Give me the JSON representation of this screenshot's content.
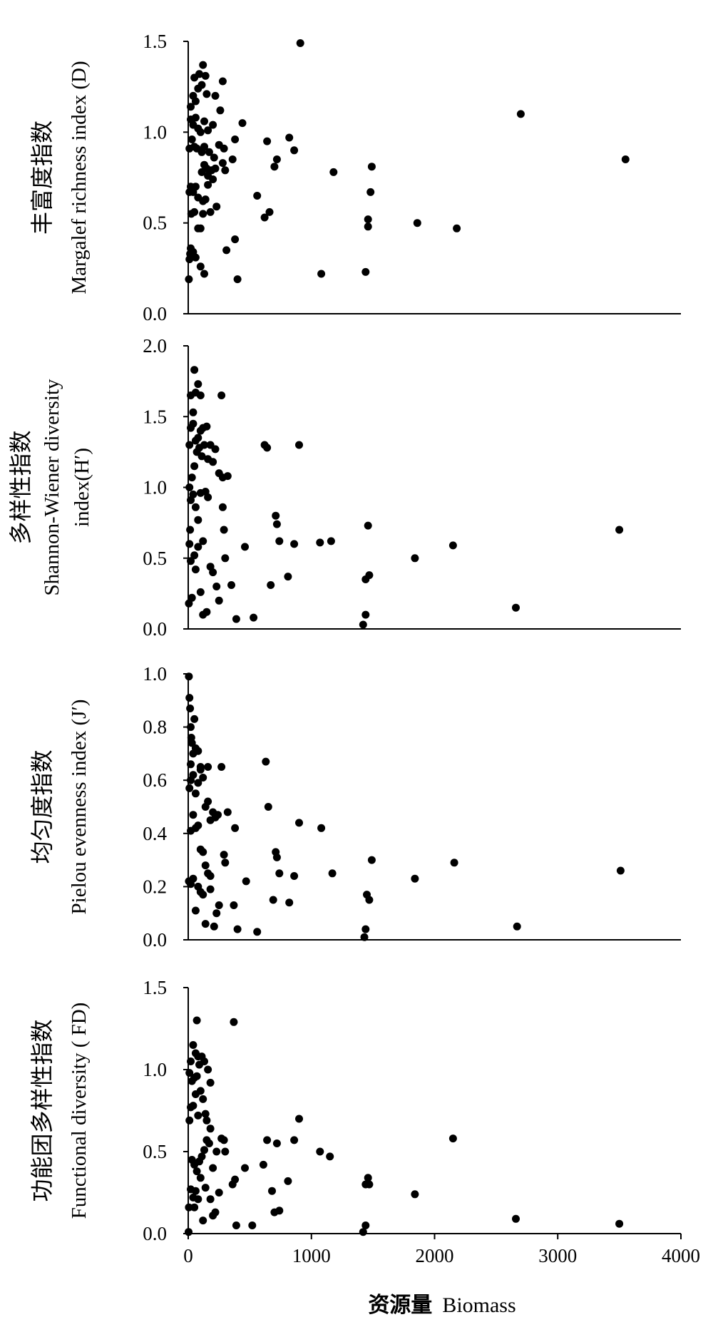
{
  "colors": {
    "point": "#000000",
    "axis": "#000000"
  },
  "chart_data": [
    {
      "type": "scatter",
      "ylabel_cn": "丰富度指数",
      "ylabel_lines": [
        "Margalef richness index (D)"
      ],
      "ylim": [
        0,
        1.5
      ],
      "yticks": [
        "0.0",
        "0.5",
        "1.0",
        "1.5"
      ],
      "xlim": [
        0,
        4000
      ],
      "points": [
        [
          5,
          0.19
        ],
        [
          10,
          0.3
        ],
        [
          15,
          0.33
        ],
        [
          20,
          0.36
        ],
        [
          40,
          0.34
        ],
        [
          60,
          0.31
        ],
        [
          100,
          0.26
        ],
        [
          130,
          0.22
        ],
        [
          25,
          0.55
        ],
        [
          50,
          0.56
        ],
        [
          80,
          0.47
        ],
        [
          100,
          0.47
        ],
        [
          120,
          0.55
        ],
        [
          140,
          0.63
        ],
        [
          180,
          0.56
        ],
        [
          230,
          0.59
        ],
        [
          10,
          0.67
        ],
        [
          20,
          0.7
        ],
        [
          40,
          0.67
        ],
        [
          60,
          0.7
        ],
        [
          80,
          0.64
        ],
        [
          120,
          0.62
        ],
        [
          160,
          0.71
        ],
        [
          200,
          0.74
        ],
        [
          110,
          0.78
        ],
        [
          130,
          0.82
        ],
        [
          150,
          0.8
        ],
        [
          160,
          0.76
        ],
        [
          190,
          0.79
        ],
        [
          220,
          0.8
        ],
        [
          280,
          0.83
        ],
        [
          300,
          0.79
        ],
        [
          10,
          0.91
        ],
        [
          30,
          0.96
        ],
        [
          50,
          0.92
        ],
        [
          70,
          0.91
        ],
        [
          110,
          0.89
        ],
        [
          130,
          0.92
        ],
        [
          170,
          0.89
        ],
        [
          210,
          0.86
        ],
        [
          250,
          0.93
        ],
        [
          290,
          0.91
        ],
        [
          360,
          0.85
        ],
        [
          380,
          0.96
        ],
        [
          20,
          1.07
        ],
        [
          40,
          1.04
        ],
        [
          60,
          1.08
        ],
        [
          80,
          1.02
        ],
        [
          100,
          1.0
        ],
        [
          130,
          1.06
        ],
        [
          160,
          1.01
        ],
        [
          200,
          1.04
        ],
        [
          260,
          1.12
        ],
        [
          440,
          1.05
        ],
        [
          20,
          1.14
        ],
        [
          40,
          1.2
        ],
        [
          60,
          1.17
        ],
        [
          80,
          1.24
        ],
        [
          110,
          1.26
        ],
        [
          150,
          1.21
        ],
        [
          220,
          1.2
        ],
        [
          50,
          1.3
        ],
        [
          90,
          1.32
        ],
        [
          120,
          1.37
        ],
        [
          140,
          1.31
        ],
        [
          280,
          1.28
        ],
        [
          310,
          0.35
        ],
        [
          380,
          0.41
        ],
        [
          400,
          0.19
        ],
        [
          560,
          0.65
        ],
        [
          620,
          0.53
        ],
        [
          660,
          0.56
        ],
        [
          640,
          0.95
        ],
        [
          700,
          0.81
        ],
        [
          720,
          0.85
        ],
        [
          820,
          0.97
        ],
        [
          860,
          0.9
        ],
        [
          910,
          1.49
        ],
        [
          1080,
          0.22
        ],
        [
          1180,
          0.78
        ],
        [
          1440,
          0.23
        ],
        [
          1460,
          0.48
        ],
        [
          1460,
          0.52
        ],
        [
          1480,
          0.67
        ],
        [
          1490,
          0.81
        ],
        [
          1860,
          0.5
        ],
        [
          2180,
          0.47
        ],
        [
          2700,
          1.1
        ],
        [
          3550,
          0.85
        ]
      ]
    },
    {
      "type": "scatter",
      "ylabel_cn": "多样性指数",
      "ylabel_lines": [
        "Shannon-Wiener diversity",
        "index(H′)"
      ],
      "ylim": [
        0,
        2.0
      ],
      "yticks": [
        "0.0",
        "0.5",
        "1.0",
        "1.5",
        "2.0"
      ],
      "xlim": [
        0,
        4000
      ],
      "points": [
        [
          5,
          0.18
        ],
        [
          10,
          0.6
        ],
        [
          15,
          0.7
        ],
        [
          20,
          0.48
        ],
        [
          30,
          0.22
        ],
        [
          50,
          0.52
        ],
        [
          60,
          0.42
        ],
        [
          80,
          0.58
        ],
        [
          100,
          0.26
        ],
        [
          120,
          0.1
        ],
        [
          150,
          0.12
        ],
        [
          180,
          0.44
        ],
        [
          200,
          0.4
        ],
        [
          230,
          0.3
        ],
        [
          250,
          0.2
        ],
        [
          20,
          0.91
        ],
        [
          40,
          0.95
        ],
        [
          60,
          0.86
        ],
        [
          80,
          0.77
        ],
        [
          100,
          0.96
        ],
        [
          120,
          0.62
        ],
        [
          140,
          0.97
        ],
        [
          160,
          0.93
        ],
        [
          10,
          1.0
        ],
        [
          30,
          1.07
        ],
        [
          50,
          1.15
        ],
        [
          70,
          1.25
        ],
        [
          90,
          1.28
        ],
        [
          110,
          1.22
        ],
        [
          130,
          1.3
        ],
        [
          160,
          1.2
        ],
        [
          200,
          1.18
        ],
        [
          250,
          1.1
        ],
        [
          280,
          1.07
        ],
        [
          320,
          1.08
        ],
        [
          10,
          1.3
        ],
        [
          20,
          1.42
        ],
        [
          40,
          1.45
        ],
        [
          60,
          1.33
        ],
        [
          80,
          1.35
        ],
        [
          100,
          1.4
        ],
        [
          120,
          1.42
        ],
        [
          150,
          1.43
        ],
        [
          180,
          1.3
        ],
        [
          220,
          1.27
        ],
        [
          20,
          1.65
        ],
        [
          40,
          1.53
        ],
        [
          60,
          1.67
        ],
        [
          80,
          1.73
        ],
        [
          100,
          1.65
        ],
        [
          50,
          1.83
        ],
        [
          270,
          1.65
        ],
        [
          280,
          0.86
        ],
        [
          290,
          0.7
        ],
        [
          300,
          0.5
        ],
        [
          350,
          0.31
        ],
        [
          390,
          0.07
        ],
        [
          460,
          0.58
        ],
        [
          530,
          0.08
        ],
        [
          620,
          1.3
        ],
        [
          640,
          1.28
        ],
        [
          670,
          0.31
        ],
        [
          710,
          0.8
        ],
        [
          720,
          0.74
        ],
        [
          740,
          0.62
        ],
        [
          810,
          0.37
        ],
        [
          860,
          0.6
        ],
        [
          900,
          1.3
        ],
        [
          1070,
          0.61
        ],
        [
          1160,
          0.62
        ],
        [
          1420,
          0.03
        ],
        [
          1440,
          0.1
        ],
        [
          1440,
          0.35
        ],
        [
          1460,
          0.73
        ],
        [
          1470,
          0.38
        ],
        [
          1840,
          0.5
        ],
        [
          2150,
          0.59
        ],
        [
          2660,
          0.15
        ],
        [
          3500,
          0.7
        ]
      ]
    },
    {
      "type": "scatter",
      "ylabel_cn": "均匀度指数",
      "ylabel_lines": [
        "Pielou evenness index (J′)"
      ],
      "ylim": [
        0,
        1.0
      ],
      "yticks": [
        "0.0",
        "0.2",
        "0.4",
        "0.6",
        "0.8",
        "1.0"
      ],
      "xlim": [
        0,
        4000
      ],
      "points": [
        [
          5,
          0.99
        ],
        [
          10,
          0.91
        ],
        [
          15,
          0.87
        ],
        [
          20,
          0.8
        ],
        [
          25,
          0.76
        ],
        [
          30,
          0.74
        ],
        [
          50,
          0.83
        ],
        [
          5,
          0.22
        ],
        [
          20,
          0.21
        ],
        [
          40,
          0.23
        ],
        [
          60,
          0.11
        ],
        [
          80,
          0.2
        ],
        [
          100,
          0.18
        ],
        [
          120,
          0.17
        ],
        [
          140,
          0.06
        ],
        [
          180,
          0.19
        ],
        [
          210,
          0.05
        ],
        [
          230,
          0.1
        ],
        [
          250,
          0.13
        ],
        [
          20,
          0.41
        ],
        [
          40,
          0.47
        ],
        [
          60,
          0.42
        ],
        [
          80,
          0.43
        ],
        [
          100,
          0.34
        ],
        [
          120,
          0.33
        ],
        [
          140,
          0.28
        ],
        [
          160,
          0.25
        ],
        [
          180,
          0.24
        ],
        [
          10,
          0.57
        ],
        [
          20,
          0.6
        ],
        [
          40,
          0.62
        ],
        [
          60,
          0.55
        ],
        [
          80,
          0.59
        ],
        [
          100,
          0.64
        ],
        [
          120,
          0.61
        ],
        [
          140,
          0.5
        ],
        [
          160,
          0.52
        ],
        [
          180,
          0.45
        ],
        [
          200,
          0.48
        ],
        [
          220,
          0.46
        ],
        [
          240,
          0.47
        ],
        [
          20,
          0.66
        ],
        [
          40,
          0.7
        ],
        [
          60,
          0.72
        ],
        [
          80,
          0.71
        ],
        [
          100,
          0.65
        ],
        [
          160,
          0.65
        ],
        [
          270,
          0.65
        ],
        [
          290,
          0.32
        ],
        [
          300,
          0.29
        ],
        [
          320,
          0.48
        ],
        [
          370,
          0.13
        ],
        [
          380,
          0.42
        ],
        [
          400,
          0.04
        ],
        [
          470,
          0.22
        ],
        [
          560,
          0.03
        ],
        [
          630,
          0.67
        ],
        [
          650,
          0.5
        ],
        [
          690,
          0.15
        ],
        [
          710,
          0.33
        ],
        [
          720,
          0.31
        ],
        [
          740,
          0.25
        ],
        [
          820,
          0.14
        ],
        [
          860,
          0.24
        ],
        [
          900,
          0.44
        ],
        [
          1080,
          0.42
        ],
        [
          1170,
          0.25
        ],
        [
          1430,
          0.01
        ],
        [
          1440,
          0.04
        ],
        [
          1450,
          0.17
        ],
        [
          1470,
          0.15
        ],
        [
          1490,
          0.3
        ],
        [
          1840,
          0.23
        ],
        [
          2160,
          0.29
        ],
        [
          2670,
          0.05
        ],
        [
          3510,
          0.26
        ]
      ]
    },
    {
      "type": "scatter",
      "ylabel_cn": "功能团多样性指数",
      "ylabel_lines": [
        "Functional diversity ( FD)"
      ],
      "ylim": [
        0,
        1.5
      ],
      "yticks": [
        "0.0",
        "0.5",
        "1.0",
        "1.5"
      ],
      "xticks": [
        "0",
        "1000",
        "2000",
        "3000",
        "4000"
      ],
      "xlabel_cn": "资源量",
      "xlabel": "Biomass",
      "xlim": [
        0,
        4000
      ],
      "points": [
        [
          3,
          0.01
        ],
        [
          5,
          0.16
        ],
        [
          20,
          0.27
        ],
        [
          40,
          0.22
        ],
        [
          50,
          0.16
        ],
        [
          60,
          0.26
        ],
        [
          80,
          0.21
        ],
        [
          100,
          0.34
        ],
        [
          120,
          0.08
        ],
        [
          140,
          0.28
        ],
        [
          180,
          0.21
        ],
        [
          200,
          0.11
        ],
        [
          220,
          0.13
        ],
        [
          250,
          0.25
        ],
        [
          30,
          0.45
        ],
        [
          50,
          0.42
        ],
        [
          70,
          0.38
        ],
        [
          90,
          0.44
        ],
        [
          110,
          0.47
        ],
        [
          130,
          0.51
        ],
        [
          150,
          0.57
        ],
        [
          170,
          0.55
        ],
        [
          200,
          0.4
        ],
        [
          230,
          0.5
        ],
        [
          10,
          0.69
        ],
        [
          20,
          0.77
        ],
        [
          40,
          0.78
        ],
        [
          60,
          0.85
        ],
        [
          80,
          0.72
        ],
        [
          100,
          0.87
        ],
        [
          120,
          0.82
        ],
        [
          140,
          0.73
        ],
        [
          150,
          0.69
        ],
        [
          180,
          0.64
        ],
        [
          10,
          0.98
        ],
        [
          30,
          0.93
        ],
        [
          50,
          0.95
        ],
        [
          70,
          0.96
        ],
        [
          90,
          1.03
        ],
        [
          110,
          1.08
        ],
        [
          130,
          1.05
        ],
        [
          160,
          1.0
        ],
        [
          180,
          0.92
        ],
        [
          20,
          1.05
        ],
        [
          40,
          1.15
        ],
        [
          60,
          1.1
        ],
        [
          80,
          1.08
        ],
        [
          70,
          1.3
        ],
        [
          270,
          0.58
        ],
        [
          290,
          0.57
        ],
        [
          300,
          0.5
        ],
        [
          360,
          0.3
        ],
        [
          370,
          1.29
        ],
        [
          380,
          0.33
        ],
        [
          390,
          0.05
        ],
        [
          460,
          0.4
        ],
        [
          520,
          0.05
        ],
        [
          610,
          0.42
        ],
        [
          640,
          0.57
        ],
        [
          680,
          0.26
        ],
        [
          700,
          0.13
        ],
        [
          720,
          0.55
        ],
        [
          740,
          0.14
        ],
        [
          810,
          0.32
        ],
        [
          860,
          0.57
        ],
        [
          900,
          0.7
        ],
        [
          1070,
          0.5
        ],
        [
          1150,
          0.47
        ],
        [
          1420,
          0.01
        ],
        [
          1440,
          0.05
        ],
        [
          1440,
          0.3
        ],
        [
          1460,
          0.34
        ],
        [
          1470,
          0.3
        ],
        [
          1840,
          0.24
        ],
        [
          2150,
          0.58
        ],
        [
          2660,
          0.09
        ],
        [
          3500,
          0.06
        ]
      ]
    }
  ]
}
